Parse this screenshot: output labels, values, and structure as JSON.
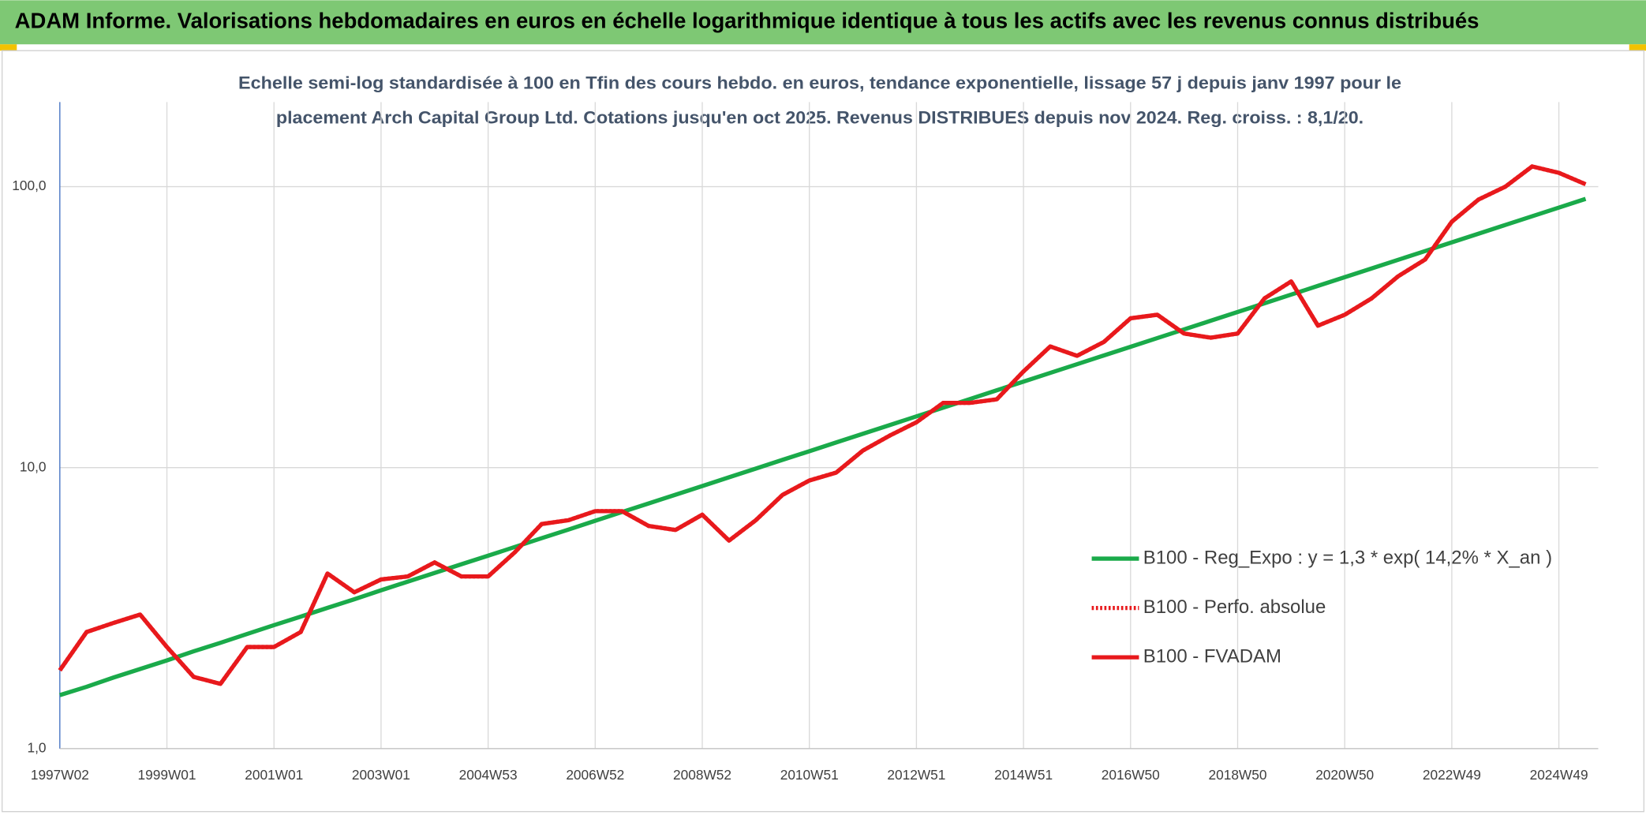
{
  "chart_data": {
    "type": "line",
    "title": "ADAM Informe. Valorisations hebdomadaires en euros en échelle logarithmique identique à tous les actifs avec les revenus connus distribués",
    "subtitle": [
      "Echelle semi-log standardisée à 100 en Tfin des cours hebdo. en euros, tendance exponentielle, lissage 57 j depuis janv 1997 pour le",
      "placement Arch Capital Group Ltd. Cotations jusqu'en oct 2025. Revenus DISTRIBUES depuis nov 2024. Reg. croiss. : 8,1/20."
    ],
    "categories": [
      "1997W02",
      null,
      null,
      null,
      "1999W01",
      null,
      null,
      null,
      "2001W01",
      null,
      null,
      null,
      "2003W01",
      null,
      null,
      null,
      "2004W53",
      null,
      null,
      null,
      "2006W52",
      null,
      null,
      null,
      "2008W52",
      null,
      null,
      null,
      "2010W51",
      null,
      null,
      null,
      "2012W51",
      null,
      null,
      null,
      "2014W51",
      null,
      null,
      null,
      "2016W50",
      null,
      null,
      null,
      "2018W50",
      null,
      null,
      null,
      "2020W50",
      null,
      null,
      null,
      "2022W49",
      null,
      null,
      null,
      "2024W49",
      null
    ],
    "log_scale": true,
    "grid": true,
    "legend": "right",
    "ylim": [
      1,
      200
    ],
    "yticks": [
      {
        "value": 1,
        "label": "1,0"
      },
      {
        "value": 10,
        "label": "10,0"
      },
      {
        "value": 100,
        "label": "100,0"
      }
    ],
    "series": [
      {
        "name": "B100 - Reg_Expo : y = 1,3 * exp( 14,2% *  X_an )",
        "color": "#1aaa4a",
        "dash": "solid",
        "values": [
          1.55,
          1.66,
          1.79,
          1.92,
          2.06,
          2.22,
          2.38,
          2.56,
          2.75,
          2.95,
          3.17,
          3.4,
          3.66,
          3.93,
          4.22,
          4.53,
          4.86,
          5.22,
          5.61,
          6.02,
          6.47,
          6.95,
          7.46,
          8.01,
          8.6,
          9.24,
          9.92,
          10.66,
          11.44,
          12.29,
          13.2,
          14.17,
          15.22,
          16.34,
          17.55,
          18.85,
          20.24,
          21.74,
          23.34,
          25.07,
          26.92,
          28.91,
          31.05,
          33.34,
          35.81,
          38.45,
          41.29,
          44.35,
          47.62,
          51.14,
          54.92,
          58.98,
          63.34,
          68.02,
          73.05,
          78.44,
          84.24,
          90.47
        ]
      },
      {
        "name": "B100 - Perfo. absolue",
        "color": "#e8191c",
        "dash": "dotted",
        "values": [
          1.9,
          2.6,
          2.8,
          3.0,
          2.3,
          1.8,
          1.7,
          2.3,
          2.3,
          2.6,
          4.2,
          3.6,
          4.0,
          4.1,
          4.6,
          4.1,
          4.1,
          5.0,
          6.3,
          6.5,
          7.0,
          7.0,
          6.2,
          6.0,
          6.8,
          5.5,
          6.5,
          8.0,
          9.0,
          9.6,
          11.5,
          13.0,
          14.5,
          17.0,
          17.0,
          17.5,
          22,
          27,
          25,
          28,
          34,
          35,
          30,
          29,
          30,
          40,
          46,
          32,
          35,
          40,
          48,
          55,
          75,
          90,
          100,
          118,
          112,
          102
        ]
      },
      {
        "name": "B100 - FVADAM",
        "color": "#e8191c",
        "dash": "solid",
        "values": [
          1.9,
          2.6,
          2.8,
          3.0,
          2.3,
          1.8,
          1.7,
          2.3,
          2.3,
          2.6,
          4.2,
          3.6,
          4.0,
          4.1,
          4.6,
          4.1,
          4.1,
          5.0,
          6.3,
          6.5,
          7.0,
          7.0,
          6.2,
          6.0,
          6.8,
          5.5,
          6.5,
          8.0,
          9.0,
          9.6,
          11.5,
          13.0,
          14.5,
          17.0,
          17.0,
          17.5,
          22,
          27,
          25,
          28,
          34,
          35,
          30,
          29,
          30,
          40,
          46,
          32,
          35,
          40,
          48,
          55,
          75,
          90,
          100,
          118,
          112,
          102
        ]
      }
    ]
  }
}
